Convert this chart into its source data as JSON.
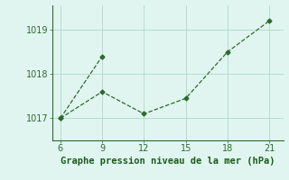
{
  "line1_x": [
    6,
    9
  ],
  "line1_y": [
    1017.0,
    1018.4
  ],
  "line2_x": [
    6,
    9,
    12,
    15,
    18,
    21
  ],
  "line2_y": [
    1017.0,
    1017.6,
    1017.1,
    1017.45,
    1018.5,
    1019.2
  ],
  "line_color": "#2d6a2d",
  "marker": "D",
  "markersize": 2.5,
  "linewidth": 0.9,
  "linestyle": "--",
  "xlim": [
    5.4,
    22.0
  ],
  "ylim": [
    1016.5,
    1019.55
  ],
  "xticks": [
    6,
    9,
    12,
    15,
    18,
    21
  ],
  "yticks": [
    1017,
    1018,
    1019
  ],
  "xlabel": "Graphe pression niveau de la mer (hPa)",
  "xlabel_color": "#1a5c1a",
  "xlabel_fontsize": 7.5,
  "tick_fontsize": 7,
  "background_color": "#e0f5f0",
  "grid_color": "#b0d8cc",
  "grid_linewidth": 0.6
}
